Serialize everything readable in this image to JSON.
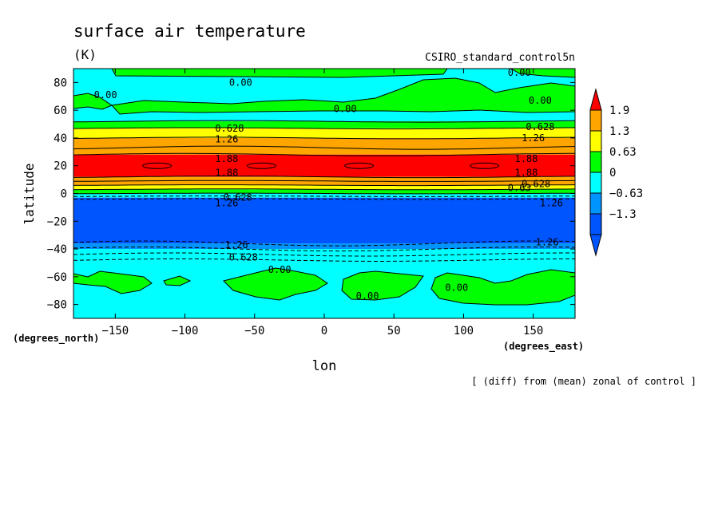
{
  "chart_data": {
    "type": "contour",
    "title": "surface air temperature",
    "units": "(K)",
    "dataset": "CSIRO_standard_control5n",
    "xlabel": "lon",
    "ylabel": "latitude",
    "x_unit_label": "(degrees_east)",
    "y_unit_label": "(degrees_north)",
    "footnote": "[ (diff) from (mean) zonal of control ]",
    "xlim": [
      -180,
      180
    ],
    "ylim": [
      -90,
      90
    ],
    "x_ticks": [
      -150,
      -100,
      -50,
      0,
      50,
      100,
      150
    ],
    "x_tick_labels": [
      "−150",
      "−100",
      "−50",
      "0",
      "50",
      "100",
      "150"
    ],
    "y_ticks": [
      80,
      60,
      40,
      20,
      0,
      -20,
      -40,
      -60,
      -80
    ],
    "y_tick_labels": [
      "80",
      "60",
      "40",
      "20",
      "0",
      "−20",
      "−40",
      "−60",
      "−80"
    ],
    "colorbar": {
      "labels": [
        "1.9",
        "1.3",
        "0.63",
        "0",
        "−0.63",
        "−1.3"
      ],
      "colors": [
        "#ff0000",
        "#ffa500",
        "#ffff00",
        "#00ff00",
        "#00ffff",
        "#0094ff",
        "#0055ff"
      ]
    },
    "contour_labels": [
      {
        "text": "0.00",
        "lon": -60,
        "lat": 80
      },
      {
        "text": "0.00",
        "lon": 140,
        "lat": 87
      },
      {
        "text": "0.00",
        "lon": -157,
        "lat": 71
      },
      {
        "text": "0.00",
        "lon": 155,
        "lat": 67
      },
      {
        "text": "0.00",
        "lon": 15,
        "lat": 61
      },
      {
        "text": "0.628",
        "lon": -68,
        "lat": 47
      },
      {
        "text": "0.628",
        "lon": 155,
        "lat": 48
      },
      {
        "text": "1.26",
        "lon": -70,
        "lat": 39
      },
      {
        "text": "1.26",
        "lon": 150,
        "lat": 40
      },
      {
        "text": "1.88",
        "lon": -70,
        "lat": 25
      },
      {
        "text": "1.88",
        "lon": 145,
        "lat": 25
      },
      {
        "text": "1.88",
        "lon": -70,
        "lat": 15
      },
      {
        "text": "1.88",
        "lon": 145,
        "lat": 15
      },
      {
        "text": "0.628",
        "lon": 152,
        "lat": 7
      },
      {
        "text": "0.63",
        "lon": 140,
        "lat": 4
      },
      {
        "text": "0.628",
        "lon": -62,
        "lat": -3
      },
      {
        "text": "1.26",
        "lon": -70,
        "lat": -7
      },
      {
        "text": "1.26",
        "lon": 163,
        "lat": -7
      },
      {
        "text": "1.26",
        "lon": -63,
        "lat": -37
      },
      {
        "text": "1.26",
        "lon": 160,
        "lat": -35
      },
      {
        "text": "0.628",
        "lon": -58,
        "lat": -46
      },
      {
        "text": "0.00",
        "lon": -32,
        "lat": -55
      },
      {
        "text": "0.00",
        "lon": 95,
        "lat": -68
      },
      {
        "text": "0.00",
        "lon": 31,
        "lat": -74
      }
    ]
  }
}
